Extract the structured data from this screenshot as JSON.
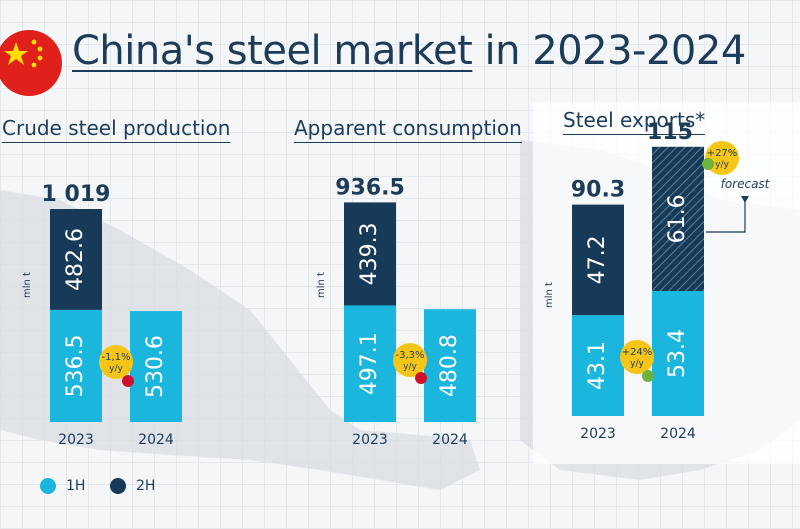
{
  "title_part1": "China's steel market",
  "title_part2": " in 2023-2024",
  "colors": {
    "h1": "#1ab6de",
    "h2": "#163a57",
    "badge": "#f5c518",
    "down": "#d0102a",
    "up": "#6cb33f",
    "text": "#1d3c5a"
  },
  "legend": [
    {
      "label": "1H",
      "color": "#1ab6de"
    },
    {
      "label": "2H",
      "color": "#163a57"
    }
  ],
  "chart_data": [
    {
      "type": "bar",
      "title": "Crude steel production",
      "ylabel": "mln t",
      "categories": [
        "2023",
        "2024"
      ],
      "series": [
        {
          "name": "1H",
          "values": [
            536.5,
            530.6
          ]
        },
        {
          "name": "2H",
          "values": [
            482.6,
            null
          ]
        }
      ],
      "totals": [
        "1 019",
        null
      ],
      "value_labels": {
        "1H": [
          "536.5",
          "530.6"
        ],
        "2H": [
          "482.6",
          ""
        ]
      },
      "change": {
        "text": "-1,1%",
        "unit": "y/y",
        "direction": "down"
      }
    },
    {
      "type": "bar",
      "title": "Apparent consumption",
      "ylabel": "mln t",
      "categories": [
        "2023",
        "2024"
      ],
      "series": [
        {
          "name": "1H",
          "values": [
            497.1,
            480.8
          ]
        },
        {
          "name": "2H",
          "values": [
            439.3,
            null
          ]
        }
      ],
      "totals": [
        "936.5",
        null
      ],
      "value_labels": {
        "1H": [
          "497.1",
          "480.8"
        ],
        "2H": [
          "439.3",
          ""
        ]
      },
      "change": {
        "text": "-3,3%",
        "unit": "y/y",
        "direction": "down"
      }
    },
    {
      "type": "bar",
      "title": "Steel exports*",
      "ylabel": "mln t",
      "categories": [
        "2023",
        "2024"
      ],
      "series": [
        {
          "name": "1H",
          "values": [
            43.1,
            53.4
          ]
        },
        {
          "name": "2H",
          "values": [
            47.2,
            61.6
          ],
          "forecast": [
            false,
            true
          ]
        }
      ],
      "totals": [
        "90.3",
        "115"
      ],
      "value_labels": {
        "1H": [
          "43.1",
          "53.4"
        ],
        "2H": [
          "47.2",
          "61.6"
        ]
      },
      "change": {
        "text": "+24%",
        "unit": "y/y",
        "direction": "up"
      },
      "total_change": {
        "text": "+27%",
        "unit": "y/y",
        "direction": "up"
      },
      "forecast_label": "forecast"
    }
  ]
}
